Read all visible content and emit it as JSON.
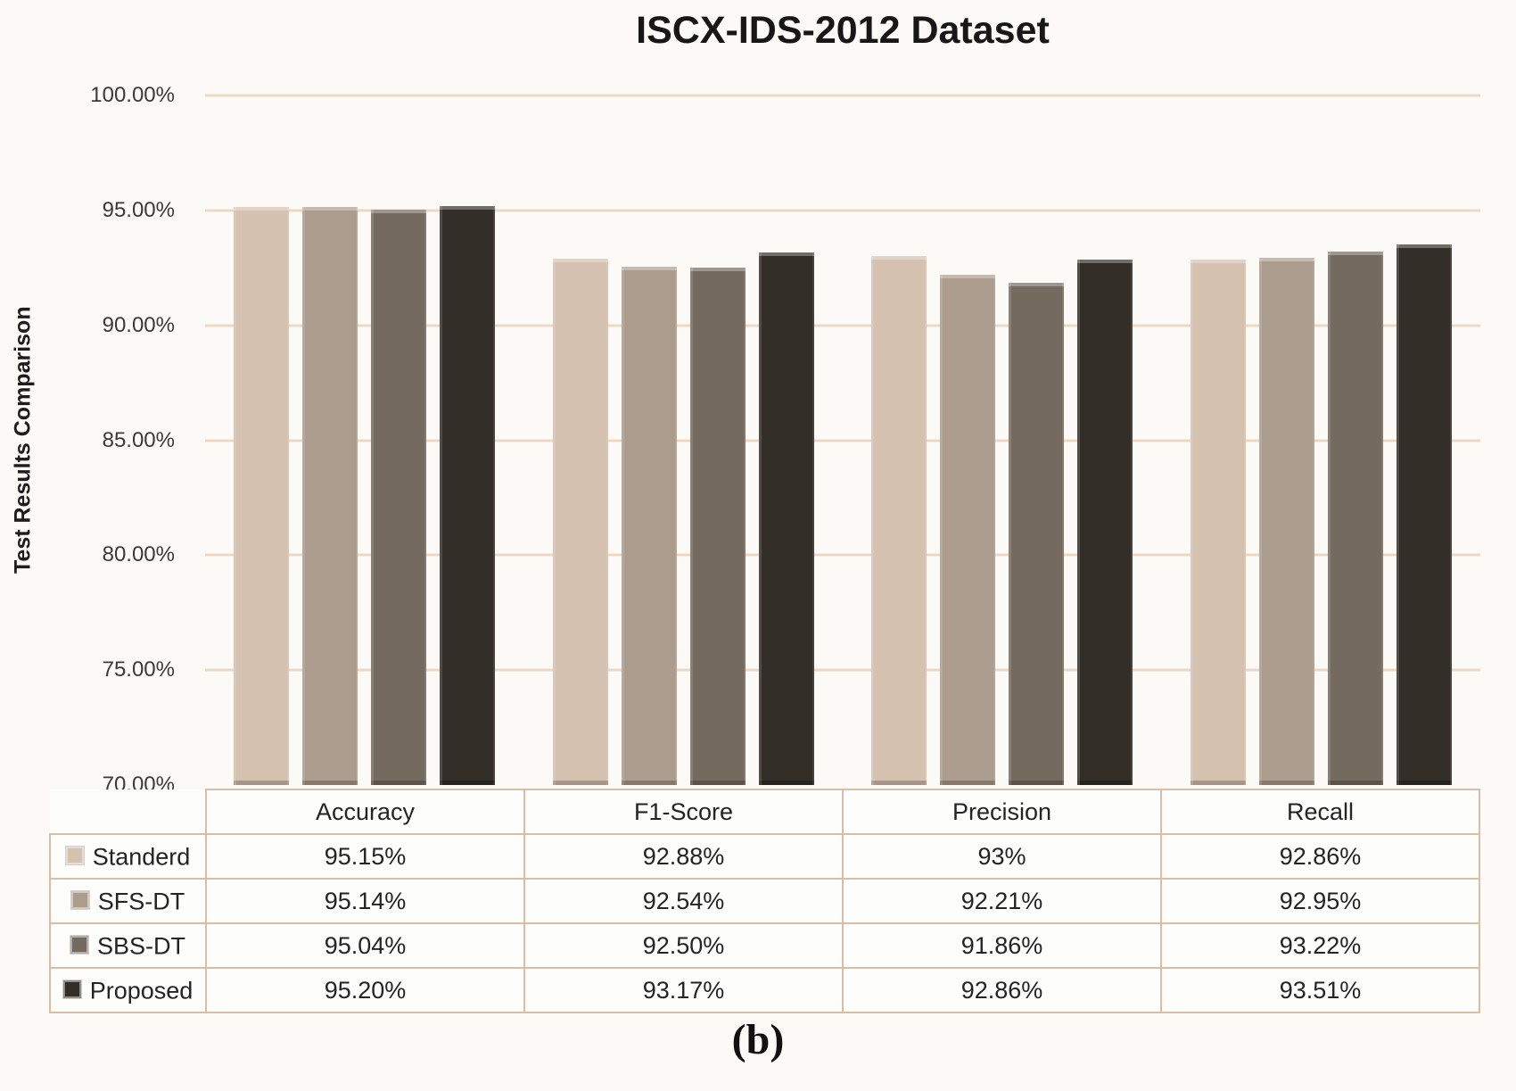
{
  "page": {
    "caption": "(b)"
  },
  "chart_data": {
    "type": "bar",
    "title": "ISCX-IDS-2012 Dataset",
    "ylabel": "Test Results Comparison",
    "categories": [
      "Accuracy",
      "F1-Score",
      "Precision",
      "Recall"
    ],
    "series": [
      {
        "name": "Standerd",
        "color": "#d4c1b0",
        "values": [
          95.15,
          92.88,
          93.0,
          92.86
        ],
        "display": [
          "95.15%",
          "92.88%",
          "93%",
          "92.86%"
        ]
      },
      {
        "name": "SFS-DT",
        "color": "#ab9c8d",
        "values": [
          95.14,
          92.54,
          92.21,
          92.95
        ],
        "display": [
          "95.14%",
          "92.54%",
          "92.21%",
          "92.95%"
        ]
      },
      {
        "name": "SBS-DT",
        "color": "#756a5f",
        "values": [
          95.04,
          92.5,
          91.86,
          93.22
        ],
        "display": [
          "95.04%",
          "92.50%",
          "91.86%",
          "93.22%"
        ]
      },
      {
        "name": "Proposed",
        "color": "#332e28",
        "values": [
          95.2,
          93.17,
          92.86,
          93.51
        ],
        "display": [
          "95.20%",
          "93.17%",
          "92.86%",
          "93.51%"
        ]
      }
    ],
    "ylim": [
      70,
      100
    ],
    "yticks": [
      {
        "value": 100,
        "label": "100.00%"
      },
      {
        "value": 95,
        "label": "95.00%"
      },
      {
        "value": 90,
        "label": "90.00%"
      },
      {
        "value": 85,
        "label": "85.00%"
      },
      {
        "value": 80,
        "label": "80.00%"
      },
      {
        "value": 75,
        "label": "75.00%"
      }
    ],
    "baseline_tick": {
      "value": 70,
      "label": "70.00%"
    },
    "grid": true,
    "legend_position": "table-left",
    "gridline_color": "#ecd8c4",
    "table_border_color": "#d9bda4"
  }
}
